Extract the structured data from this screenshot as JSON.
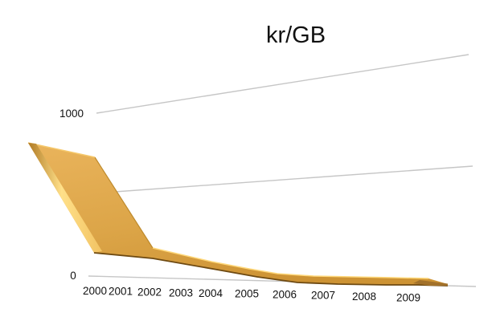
{
  "title": "kr/GB",
  "chart_data": {
    "type": "area",
    "style": "3d-ribbon",
    "title": "kr/GB",
    "xlabel": "",
    "ylabel": "",
    "categories": [
      "2000",
      "2001",
      "2002",
      "2003",
      "2004",
      "2005",
      "2006",
      "2007",
      "2008",
      "2009"
    ],
    "series": [
      {
        "name": "kr/GB",
        "values": [
          900,
          145,
          105,
          60,
          35,
          15,
          8,
          5,
          4,
          2
        ]
      }
    ],
    "y_tick_labels": [
      "1000",
      "0"
    ],
    "ylim": [
      0,
      1000
    ],
    "gridlines_at": [
      0,
      500,
      1000
    ],
    "grid": true,
    "legend_position": "none",
    "colors": {
      "area_face": "#DDA64C",
      "area_highlight": "#FFD87A",
      "area_dark_edge": "#6E4A12",
      "end_cap": "#A2712A",
      "gridline": "#C6C6C6",
      "text": "#111111",
      "background": "#FFFFFF"
    }
  }
}
